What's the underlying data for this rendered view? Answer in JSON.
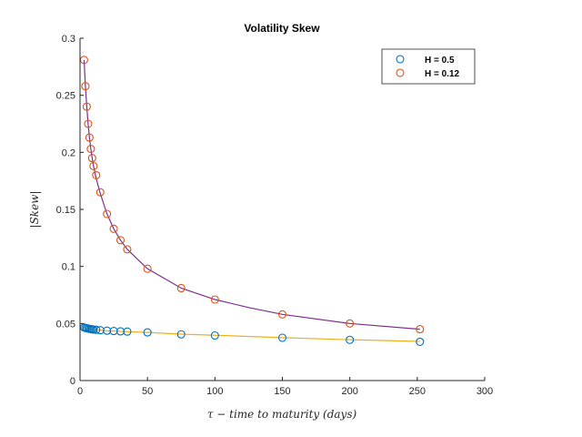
{
  "chart_data": {
    "type": "scatter",
    "title": "Volatility Skew",
    "xlabel": "τ − time to maturity (days)",
    "ylabel": "|Skew|",
    "xlim": [
      0,
      300
    ],
    "ylim": [
      0,
      0.3
    ],
    "xticks": [
      0,
      50,
      100,
      150,
      200,
      250,
      300
    ],
    "yticks": [
      0,
      0.05,
      0.1,
      0.15,
      0.2,
      0.25,
      0.3
    ],
    "xtick_labels": [
      "0",
      "50",
      "100",
      "150",
      "200",
      "250",
      "300"
    ],
    "ytick_labels": [
      "0",
      "0.05",
      "0.1",
      "0.15",
      "0.2",
      "0.25",
      "0.3"
    ],
    "grid": false,
    "legend_position": "top-right",
    "series": [
      {
        "name": "H = 0.5",
        "marker_color": "#0072BD",
        "fit_color": "#EDB120",
        "x": [
          3,
          4,
          5,
          6,
          7,
          8,
          9,
          10,
          12,
          15,
          20,
          25,
          30,
          35,
          50,
          75,
          100,
          150,
          200,
          252
        ],
        "y": [
          0.0465,
          0.0461,
          0.0458,
          0.0455,
          0.0453,
          0.0451,
          0.0449,
          0.0447,
          0.0445,
          0.0441,
          0.0437,
          0.0434,
          0.0431,
          0.0429,
          0.0422,
          0.0405,
          0.0395,
          0.0375,
          0.0357,
          0.034
        ],
        "fit_x": [
          1,
          5,
          10,
          20,
          35,
          50,
          75,
          100,
          150,
          200,
          252
        ],
        "fit_y": [
          0.0475,
          0.0455,
          0.0446,
          0.0436,
          0.0428,
          0.0422,
          0.0407,
          0.0397,
          0.0376,
          0.0358,
          0.0343
        ]
      },
      {
        "name": "H = 0.12",
        "marker_color": "#D95319",
        "fit_color": "#7E2F8E",
        "x": [
          3,
          4,
          5,
          6,
          7,
          8,
          9,
          10,
          12,
          15,
          20,
          25,
          30,
          35,
          50,
          75,
          100,
          150,
          200,
          252
        ],
        "y": [
          0.281,
          0.258,
          0.24,
          0.225,
          0.213,
          0.203,
          0.195,
          0.188,
          0.18,
          0.165,
          0.146,
          0.133,
          0.123,
          0.115,
          0.098,
          0.081,
          0.071,
          0.058,
          0.05,
          0.045
        ],
        "fit_x": [
          3,
          4,
          5,
          6,
          7,
          8,
          9,
          10,
          12,
          15,
          20,
          25,
          30,
          35,
          50,
          75,
          100,
          125,
          150,
          200,
          252
        ],
        "fit_y": [
          0.281,
          0.258,
          0.24,
          0.225,
          0.213,
          0.203,
          0.195,
          0.188,
          0.177,
          0.164,
          0.146,
          0.133,
          0.123,
          0.115,
          0.098,
          0.081,
          0.071,
          0.064,
          0.058,
          0.05,
          0.045
        ]
      }
    ]
  }
}
